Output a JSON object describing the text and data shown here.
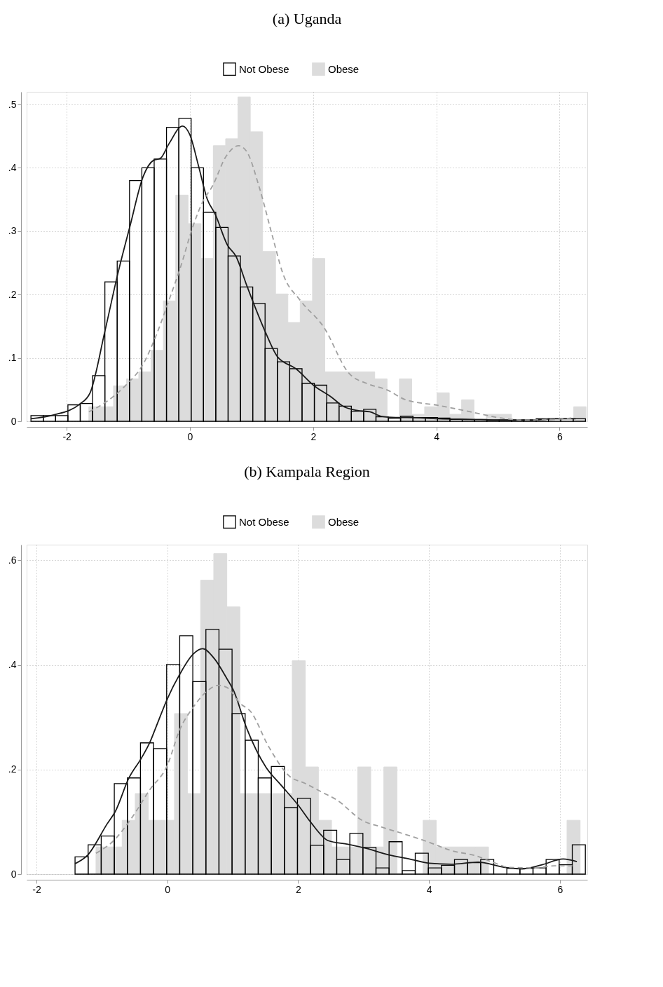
{
  "chart_data": [
    {
      "type": "histogram",
      "title": "(a) Uganda",
      "legend": "top",
      "grid": true,
      "xlim": [
        -2.65,
        6.45
      ],
      "xticks": [
        -2,
        0,
        2,
        4,
        6
      ],
      "ylim": [
        0,
        0.52
      ],
      "yticks": [
        0,
        {
          "value": 0.1,
          "label": ".1"
        },
        {
          "value": 0.2,
          "label": ".2"
        },
        {
          "value": 0.3,
          "label": ".3"
        },
        {
          "value": 0.4,
          "label": ".4"
        },
        {
          "value": 0.5,
          "label": ".5"
        }
      ],
      "series": [
        {
          "name": "Not Obese",
          "color": "#000000",
          "bins": [
            -2.58,
            -2.38,
            -2.18,
            -1.98,
            -1.78,
            -1.58,
            -1.38,
            -1.18,
            -0.98,
            -0.78,
            -0.58,
            -0.38,
            -0.18,
            0.02,
            0.22,
            0.42,
            0.62,
            0.82,
            1.02,
            1.22,
            1.42,
            1.62,
            1.82,
            2.02,
            2.22,
            2.42,
            2.62,
            2.82,
            3.02,
            3.22,
            3.42,
            3.62,
            3.82,
            4.02,
            4.22,
            4.42,
            4.62,
            4.82,
            5.02,
            5.22,
            5.42,
            5.62,
            5.82,
            6.02,
            6.22,
            6.42
          ],
          "values": [
            0.009,
            0.009,
            0.009,
            0.026,
            0.028,
            0.072,
            0.22,
            0.253,
            0.38,
            0.4,
            0.414,
            0.464,
            0.478,
            0.4,
            0.33,
            0.306,
            0.261,
            0.212,
            0.186,
            0.115,
            0.094,
            0.083,
            0.06,
            0.057,
            0.029,
            0.024,
            0.016,
            0.019,
            0.007,
            0.005,
            0.008,
            0.006,
            0.006,
            0.005,
            0.003,
            0.003,
            0.003,
            0.002,
            0.002,
            0.002,
            0.002,
            0.004,
            0.004,
            0.004,
            0.004
          ]
        },
        {
          "name": "Obese",
          "color": "#dcdcdc",
          "bins": [
            -1.64,
            -1.44,
            -1.24,
            -1.03,
            -0.83,
            -0.63,
            -0.43,
            -0.23,
            -0.03,
            0.18,
            0.38,
            0.58,
            0.78,
            0.98,
            1.18,
            1.39,
            1.59,
            1.79,
            1.99,
            2.19,
            2.39,
            2.6,
            2.8,
            3.0,
            3.2,
            3.4,
            3.6,
            3.81,
            4.01,
            4.21,
            4.41,
            4.61,
            4.81,
            5.02,
            5.22,
            5.42,
            5.62,
            5.82,
            6.02,
            6.23,
            6.43
          ],
          "values": [
            0.023,
            0.023,
            0.056,
            0.067,
            0.078,
            0.112,
            0.19,
            0.357,
            0.312,
            0.257,
            0.435,
            0.446,
            0.512,
            0.457,
            0.268,
            0.201,
            0.156,
            0.19,
            0.257,
            0.078,
            0.078,
            0.078,
            0.078,
            0.067,
            0,
            0.067,
            0.011,
            0.023,
            0.045,
            0.011,
            0.034,
            0,
            0.011,
            0.011,
            0,
            0,
            0,
            0,
            0,
            0.023
          ]
        },
        {
          "type": "line",
          "color": "#1a1a1a",
          "line_style": "solid",
          "x": [
            -2.58,
            -2.21,
            -1.79,
            -1.62,
            -1.38,
            -1.17,
            -0.97,
            -0.76,
            -0.59,
            -0.48,
            -0.34,
            -0.12,
            0,
            0.14,
            0.28,
            0.41,
            0.61,
            0.75,
            0.92,
            1.22,
            1.42,
            1.72,
            2.03,
            2.3,
            2.48,
            2.72,
            2.92,
            3.1,
            3.34,
            3.53,
            4.04,
            4.55,
            5.06,
            5.57,
            5.91,
            6.26
          ],
          "values": [
            0.004,
            0.01,
            0.027,
            0.045,
            0.142,
            0.233,
            0.309,
            0.386,
            0.412,
            0.415,
            0.438,
            0.466,
            0.452,
            0.403,
            0.351,
            0.327,
            0.278,
            0.26,
            0.215,
            0.142,
            0.102,
            0.083,
            0.055,
            0.038,
            0.024,
            0.017,
            0.015,
            0.008,
            0.006,
            0.006,
            0.004,
            0.003,
            0.002,
            0.002,
            0.004,
            0.004
          ]
        },
        {
          "type": "line",
          "color": "#a0a0a0",
          "line_style": "dashed",
          "x": [
            -1.64,
            -1.34,
            -1.03,
            -0.76,
            -0.55,
            -0.34,
            -0.14,
            0.03,
            0.2,
            0.37,
            0.58,
            0.79,
            0.92,
            1.13,
            1.34,
            1.51,
            1.79,
            2.17,
            2.58,
            2.92,
            3.19,
            3.5,
            4.04,
            4.55,
            5.06,
            5.4,
            5.91,
            6.19
          ],
          "values": [
            0.015,
            0.032,
            0.058,
            0.09,
            0.135,
            0.191,
            0.247,
            0.302,
            0.345,
            0.372,
            0.417,
            0.435,
            0.426,
            0.368,
            0.292,
            0.233,
            0.191,
            0.149,
            0.076,
            0.058,
            0.05,
            0.034,
            0.025,
            0.015,
            0.005,
            0.002,
            0.003,
            0.005
          ]
        }
      ]
    },
    {
      "type": "histogram",
      "title": "(b) Kampala Region",
      "legend": "top",
      "grid": true,
      "xlim": [
        -2.15,
        6.42
      ],
      "xticks": [
        -2,
        0,
        2,
        4,
        6
      ],
      "ylim": [
        0,
        0.63
      ],
      "yticks": [
        0,
        {
          "value": 0.2,
          "label": ".2"
        },
        {
          "value": 0.4,
          "label": ".4"
        },
        {
          "value": 0.6,
          "label": ".6"
        }
      ],
      "series": [
        {
          "name": "Not Obese",
          "color": "#000000",
          "bins": [
            -1.41,
            -1.21,
            -1.01,
            -0.81,
            -0.61,
            -0.41,
            -0.21,
            -0.01,
            0.19,
            0.39,
            0.59,
            0.79,
            0.99,
            1.19,
            1.39,
            1.59,
            1.79,
            1.99,
            2.19,
            2.39,
            2.59,
            2.79,
            2.99,
            3.19,
            3.39,
            3.59,
            3.79,
            3.99,
            4.19,
            4.39,
            4.59,
            4.79,
            4.99,
            5.19,
            5.39,
            5.59,
            5.79,
            5.99,
            6.19,
            6.39
          ],
          "values": [
            0.033,
            0.056,
            0.073,
            0.173,
            0.184,
            0.251,
            0.24,
            0.401,
            0.456,
            0.368,
            0.468,
            0.43,
            0.307,
            0.256,
            0.184,
            0.206,
            0.127,
            0.145,
            0.055,
            0.084,
            0.028,
            0.078,
            0.051,
            0.012,
            0.062,
            0.007,
            0.04,
            0.012,
            0.017,
            0.028,
            0.022,
            0.028,
            0,
            0.011,
            0.011,
            0.012,
            0.028,
            0.018,
            0.056
          ]
        },
        {
          "name": "Obese",
          "color": "#dcdcdc",
          "bins": [
            -1.09,
            -0.89,
            -0.69,
            -0.49,
            -0.29,
            -0.09,
            0.11,
            0.31,
            0.51,
            0.71,
            0.91,
            1.11,
            1.31,
            1.51,
            1.71,
            1.91,
            2.11,
            2.31,
            2.51,
            2.71,
            2.91,
            3.11,
            3.31,
            3.51,
            3.71,
            3.91,
            4.11,
            4.31,
            4.51,
            4.71,
            4.91,
            5.11,
            5.31,
            5.51,
            5.71,
            5.91,
            6.11,
            6.31
          ],
          "values": [
            0.052,
            0.052,
            0.103,
            0.154,
            0.103,
            0.103,
            0.307,
            0.154,
            0.562,
            0.613,
            0.511,
            0.154,
            0.154,
            0.154,
            0.154,
            0.408,
            0.205,
            0.103,
            0.052,
            0.052,
            0.205,
            0.052,
            0.205,
            0,
            0,
            0.103,
            0.052,
            0.052,
            0.052,
            0.052,
            0,
            0,
            0,
            0,
            0,
            0,
            0.103
          ]
        },
        {
          "type": "line",
          "color": "#1a1a1a",
          "line_style": "solid",
          "x": [
            -1.41,
            -1.22,
            -0.92,
            -0.79,
            -0.59,
            -0.4,
            -0.27,
            -0.17,
            0,
            0.19,
            0.39,
            0.54,
            0.72,
            0.91,
            1.01,
            1.21,
            1.51,
            1.74,
            2.0,
            2.2,
            2.46,
            2.76,
            3.05,
            3.38,
            3.7,
            4.0,
            4.34,
            4.75,
            5.16,
            5.42,
            5.73,
            6.05,
            6.26
          ],
          "values": [
            0.02,
            0.036,
            0.096,
            0.121,
            0.183,
            0.221,
            0.251,
            0.282,
            0.335,
            0.382,
            0.42,
            0.431,
            0.412,
            0.374,
            0.352,
            0.28,
            0.204,
            0.17,
            0.132,
            0.098,
            0.064,
            0.057,
            0.049,
            0.037,
            0.029,
            0.021,
            0.019,
            0.023,
            0.013,
            0.01,
            0.018,
            0.029,
            0.024
          ]
        },
        {
          "type": "line",
          "color": "#a0a0a0",
          "line_style": "dashed",
          "x": [
            -1.09,
            -0.82,
            -0.53,
            -0.27,
            0,
            0.19,
            0.39,
            0.59,
            0.78,
            0.91,
            1.11,
            1.28,
            1.54,
            1.87,
            2.1,
            2.36,
            2.59,
            2.99,
            3.25,
            3.64,
            4.0,
            4.34,
            4.72,
            4.97,
            5.23,
            5.61,
            5.92,
            6.19
          ],
          "values": [
            0.04,
            0.064,
            0.11,
            0.161,
            0.208,
            0.276,
            0.318,
            0.348,
            0.361,
            0.357,
            0.327,
            0.31,
            0.246,
            0.187,
            0.174,
            0.157,
            0.142,
            0.102,
            0.091,
            0.076,
            0.061,
            0.045,
            0.035,
            0.023,
            0.013,
            0.012,
            0.016,
            0.016
          ]
        }
      ]
    }
  ]
}
